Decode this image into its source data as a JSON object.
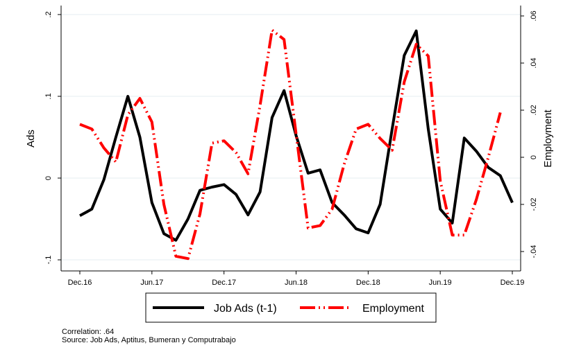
{
  "chart_data": {
    "type": "line",
    "xlabel": "",
    "ylabel": "Ads",
    "y2label": "Employment",
    "ylim": [
      -0.1,
      0.2
    ],
    "y2lim": [
      -0.04,
      0.06
    ],
    "xlim": [
      0,
      36
    ],
    "yticks": [
      -0.1,
      0,
      0.1,
      0.2
    ],
    "ytick_labels": [
      "-.1",
      "0",
      ".1",
      ".2"
    ],
    "y2ticks": [
      -0.04,
      -0.02,
      0,
      0.02,
      0.04,
      0.06
    ],
    "y2tick_labels": [
      "-.04",
      "-.02",
      "0",
      ".02",
      ".04",
      ".06"
    ],
    "xticks": [
      0,
      6,
      12,
      18,
      24,
      30,
      36
    ],
    "xtick_labels": [
      "Dec.16",
      "Jun.17",
      "Dec.17",
      "Jun.18",
      "Dec.18",
      "Jun.19",
      "Dec.19"
    ],
    "grid": true,
    "legend_position": "bottom",
    "series": [
      {
        "name": "Job Ads (t-1)",
        "color": "#000000",
        "axis": "left",
        "style": "solid",
        "x": [
          0,
          1,
          2,
          3,
          4,
          5,
          6,
          7,
          8,
          9,
          10,
          11,
          12,
          13,
          14,
          15,
          16,
          17,
          18,
          19,
          20,
          21,
          22,
          23,
          24,
          25,
          26,
          27,
          28,
          29,
          30,
          31,
          32,
          33,
          34,
          35,
          36
        ],
        "values": [
          -0.046,
          -0.038,
          -0.002,
          0.05,
          0.1,
          0.05,
          -0.03,
          -0.068,
          -0.076,
          -0.05,
          -0.015,
          -0.011,
          -0.008,
          -0.02,
          -0.045,
          -0.017,
          0.074,
          0.107,
          0.052,
          0.006,
          0.01,
          -0.03,
          -0.045,
          -0.062,
          -0.067,
          -0.032,
          0.06,
          0.15,
          0.18,
          0.06,
          -0.038,
          -0.055,
          0.049,
          0.033,
          0.013,
          0.003,
          -0.03
        ]
      },
      {
        "name": "Employment",
        "color": "#ff0000",
        "axis": "right",
        "style": "dash-dot",
        "x": [
          0,
          1,
          2,
          3,
          4,
          5,
          6,
          7,
          8,
          9,
          10,
          11,
          12,
          13,
          14,
          15,
          16,
          17,
          18,
          19,
          20,
          21,
          22,
          23,
          24,
          25,
          26,
          27,
          28,
          29,
          30,
          31,
          32,
          33,
          34,
          35
        ],
        "values": [
          0.014,
          0.012,
          0.004,
          -0.002,
          0.018,
          0.025,
          0.015,
          -0.02,
          -0.042,
          -0.043,
          -0.024,
          0.006,
          0.007,
          0.002,
          -0.007,
          0.022,
          0.054,
          0.05,
          0.01,
          -0.03,
          -0.029,
          -0.022,
          -0.003,
          0.012,
          0.014,
          0.008,
          0.003,
          0.032,
          0.048,
          0.043,
          -0.01,
          -0.033,
          -0.033,
          -0.018,
          0,
          0.019
        ]
      }
    ]
  },
  "footnotes": {
    "correlation": "Correlation: .64",
    "source": "Source: Job Ads, Aptitus, Bumeran y Computrabajo"
  }
}
